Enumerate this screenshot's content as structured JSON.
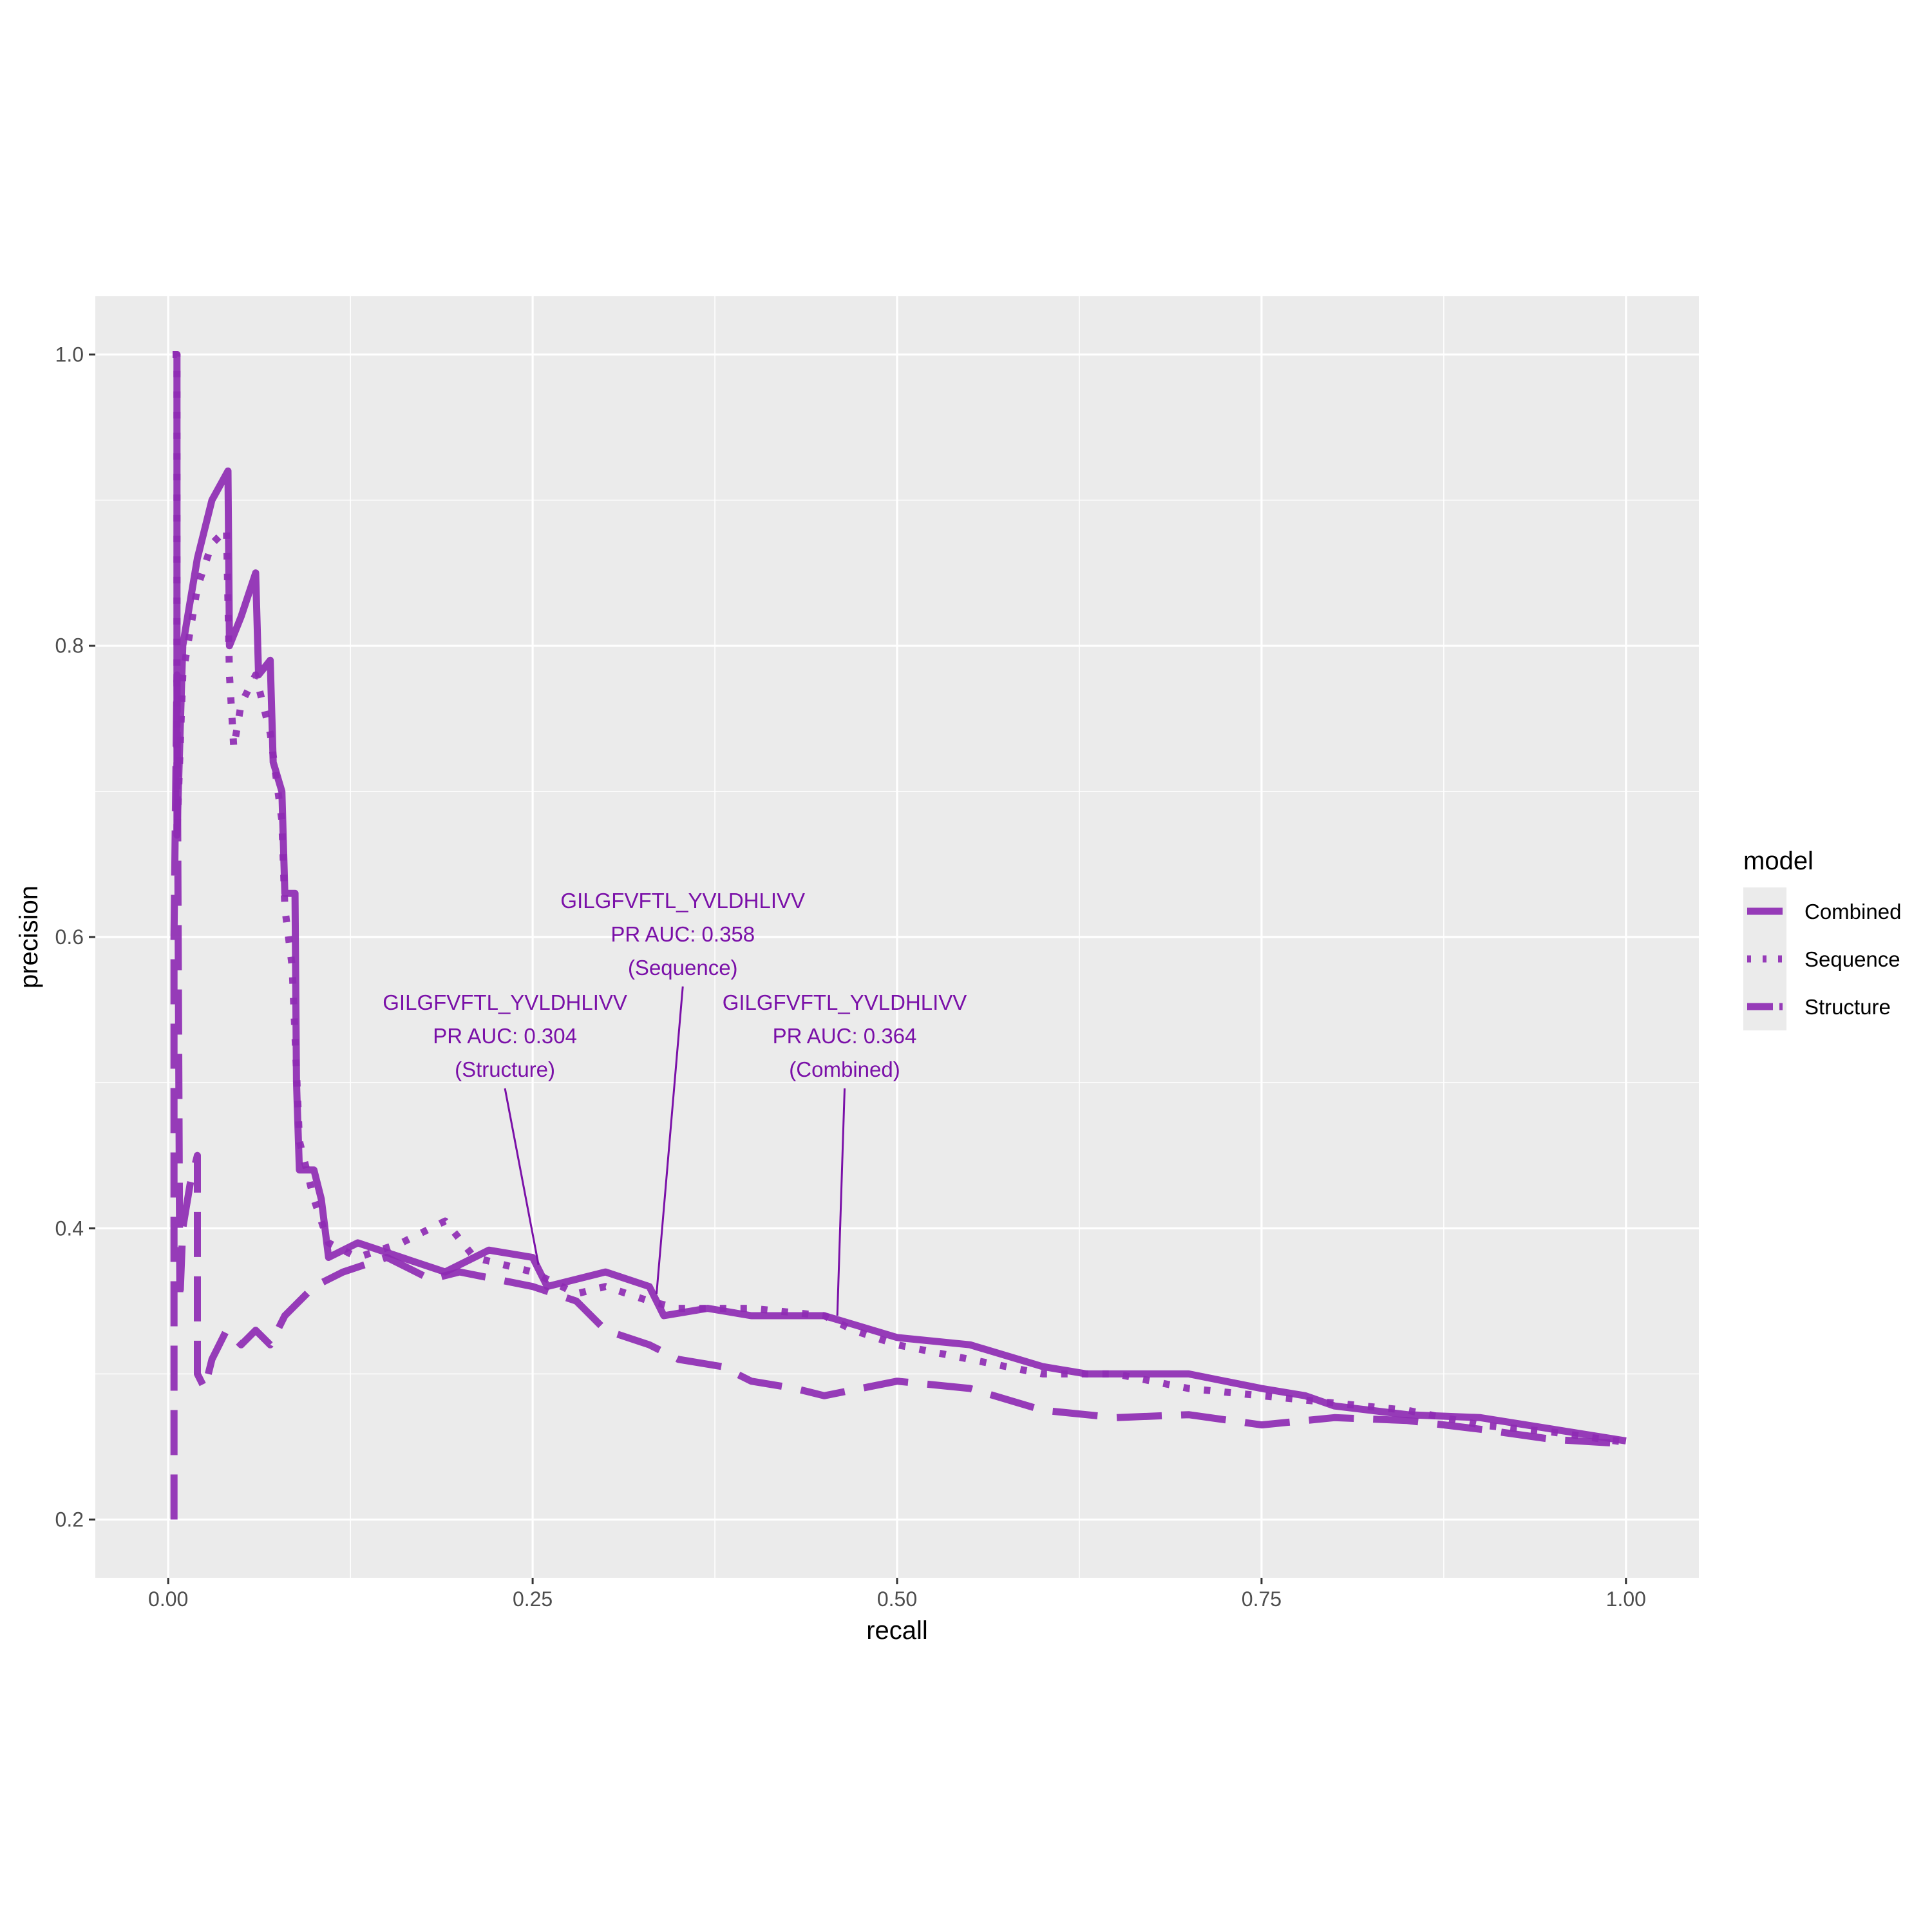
{
  "chart_data": {
    "type": "line",
    "xlabel": "recall",
    "ylabel": "precision",
    "xlim": [
      -0.05,
      1.05
    ],
    "ylim": [
      0.16,
      1.04
    ],
    "x_ticks": [
      0,
      0.25,
      0.5,
      0.75,
      1
    ],
    "x_tick_labels": [
      "0.00",
      "0.25",
      "0.50",
      "0.75",
      "1.00"
    ],
    "y_ticks": [
      0.2,
      0.4,
      0.6,
      0.8,
      1.0
    ],
    "y_tick_labels": [
      "0.2",
      "0.4",
      "0.6",
      "0.8",
      "1.0"
    ],
    "grid": true,
    "legend": {
      "title": "model",
      "position": "right",
      "entries": [
        "Combined",
        "Sequence",
        "Structure"
      ]
    },
    "line_color": "#8e2bb3",
    "panel_background": "#ebebeb",
    "series": [
      {
        "name": "Combined",
        "linetype": "solid",
        "points": [
          [
            0.003,
            1.0
          ],
          [
            0.006,
            1.0
          ],
          [
            0.006,
            0.67
          ],
          [
            0.01,
            0.8
          ],
          [
            0.02,
            0.86
          ],
          [
            0.03,
            0.9
          ],
          [
            0.041,
            0.92
          ],
          [
            0.042,
            0.8
          ],
          [
            0.05,
            0.82
          ],
          [
            0.06,
            0.85
          ],
          [
            0.062,
            0.78
          ],
          [
            0.07,
            0.79
          ],
          [
            0.072,
            0.72
          ],
          [
            0.078,
            0.7
          ],
          [
            0.08,
            0.63
          ],
          [
            0.087,
            0.63
          ],
          [
            0.088,
            0.5
          ],
          [
            0.09,
            0.44
          ],
          [
            0.1,
            0.44
          ],
          [
            0.105,
            0.42
          ],
          [
            0.11,
            0.38
          ],
          [
            0.13,
            0.39
          ],
          [
            0.16,
            0.38
          ],
          [
            0.19,
            0.37
          ],
          [
            0.22,
            0.385
          ],
          [
            0.25,
            0.38
          ],
          [
            0.26,
            0.36
          ],
          [
            0.3,
            0.37
          ],
          [
            0.33,
            0.36
          ],
          [
            0.34,
            0.34
          ],
          [
            0.37,
            0.345
          ],
          [
            0.4,
            0.34
          ],
          [
            0.45,
            0.34
          ],
          [
            0.5,
            0.325
          ],
          [
            0.55,
            0.32
          ],
          [
            0.6,
            0.305
          ],
          [
            0.63,
            0.3
          ],
          [
            0.7,
            0.3
          ],
          [
            0.75,
            0.29
          ],
          [
            0.78,
            0.285
          ],
          [
            0.8,
            0.278
          ],
          [
            0.85,
            0.272
          ],
          [
            0.9,
            0.27
          ],
          [
            0.95,
            0.262
          ],
          [
            1.0,
            0.254
          ]
        ]
      },
      {
        "name": "Sequence",
        "linetype": "dotted",
        "points": [
          [
            0.003,
            1.0
          ],
          [
            0.006,
            1.0
          ],
          [
            0.006,
            0.67
          ],
          [
            0.01,
            0.78
          ],
          [
            0.02,
            0.84
          ],
          [
            0.03,
            0.87
          ],
          [
            0.04,
            0.88
          ],
          [
            0.042,
            0.78
          ],
          [
            0.045,
            0.73
          ],
          [
            0.05,
            0.76
          ],
          [
            0.06,
            0.78
          ],
          [
            0.07,
            0.74
          ],
          [
            0.078,
            0.68
          ],
          [
            0.08,
            0.62
          ],
          [
            0.085,
            0.58
          ],
          [
            0.09,
            0.46
          ],
          [
            0.1,
            0.42
          ],
          [
            0.11,
            0.39
          ],
          [
            0.13,
            0.38
          ],
          [
            0.16,
            0.39
          ],
          [
            0.19,
            0.405
          ],
          [
            0.21,
            0.38
          ],
          [
            0.25,
            0.37
          ],
          [
            0.28,
            0.355
          ],
          [
            0.3,
            0.36
          ],
          [
            0.33,
            0.35
          ],
          [
            0.35,
            0.345
          ],
          [
            0.4,
            0.345
          ],
          [
            0.45,
            0.34
          ],
          [
            0.47,
            0.33
          ],
          [
            0.5,
            0.32
          ],
          [
            0.55,
            0.31
          ],
          [
            0.6,
            0.3
          ],
          [
            0.65,
            0.3
          ],
          [
            0.7,
            0.29
          ],
          [
            0.75,
            0.285
          ],
          [
            0.8,
            0.28
          ],
          [
            0.85,
            0.275
          ],
          [
            0.9,
            0.265
          ],
          [
            0.95,
            0.26
          ],
          [
            1.0,
            0.253
          ]
        ]
      },
      {
        "name": "Structure",
        "linetype": "longdash",
        "points": [
          [
            0.004,
            0.2
          ],
          [
            0.004,
            0.6
          ],
          [
            0.006,
            0.78
          ],
          [
            0.008,
            0.35
          ],
          [
            0.01,
            0.4
          ],
          [
            0.015,
            0.43
          ],
          [
            0.02,
            0.45
          ],
          [
            0.02,
            0.3
          ],
          [
            0.025,
            0.29
          ],
          [
            0.03,
            0.31
          ],
          [
            0.04,
            0.33
          ],
          [
            0.05,
            0.32
          ],
          [
            0.06,
            0.33
          ],
          [
            0.07,
            0.32
          ],
          [
            0.08,
            0.34
          ],
          [
            0.1,
            0.36
          ],
          [
            0.12,
            0.37
          ],
          [
            0.15,
            0.38
          ],
          [
            0.18,
            0.365
          ],
          [
            0.2,
            0.37
          ],
          [
            0.25,
            0.36
          ],
          [
            0.28,
            0.35
          ],
          [
            0.3,
            0.33
          ],
          [
            0.33,
            0.32
          ],
          [
            0.35,
            0.31
          ],
          [
            0.38,
            0.305
          ],
          [
            0.4,
            0.295
          ],
          [
            0.43,
            0.29
          ],
          [
            0.45,
            0.285
          ],
          [
            0.5,
            0.295
          ],
          [
            0.55,
            0.29
          ],
          [
            0.6,
            0.275
          ],
          [
            0.65,
            0.27
          ],
          [
            0.7,
            0.272
          ],
          [
            0.75,
            0.265
          ],
          [
            0.8,
            0.27
          ],
          [
            0.85,
            0.268
          ],
          [
            0.9,
            0.262
          ],
          [
            0.95,
            0.255
          ],
          [
            1.0,
            0.252
          ]
        ]
      }
    ],
    "annotations": [
      {
        "series": "Structure",
        "lines": [
          "GILGFVFTL_YVLDHLIVV",
          "PR AUC: 0.304",
          "(Structure)"
        ],
        "label_at": [
          0.231,
          0.55
        ],
        "points_to": [
          0.254,
          0.375
        ]
      },
      {
        "series": "Sequence",
        "lines": [
          "GILGFVFTL_YVLDHLIVV",
          "PR AUC: 0.358",
          "(Sequence)"
        ],
        "label_at": [
          0.353,
          0.62
        ],
        "points_to": [
          0.335,
          0.355
        ]
      },
      {
        "series": "Combined",
        "lines": [
          "GILGFVFTL_YVLDHLIVV",
          "PR AUC: 0.364",
          "(Combined)"
        ],
        "label_at": [
          0.464,
          0.55
        ],
        "points_to": [
          0.459,
          0.34
        ]
      }
    ]
  }
}
